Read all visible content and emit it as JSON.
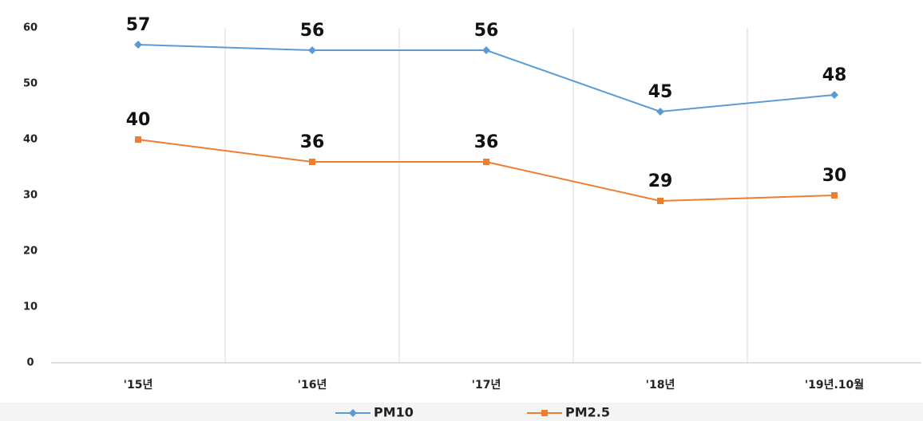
{
  "chart_data": {
    "type": "line",
    "categories": [
      "'15년",
      "'16년",
      "'17년",
      "'18년",
      "'19년.10월"
    ],
    "series": [
      {
        "name": "PM10",
        "color": "#5b9bd5",
        "marker": "diamond",
        "values": [
          57,
          56,
          56,
          45,
          48
        ]
      },
      {
        "name": "PM2.5",
        "color": "#ed7d31",
        "marker": "square",
        "values": [
          40,
          36,
          36,
          29,
          30
        ]
      }
    ],
    "ylim": [
      0,
      60
    ],
    "yticks": [
      0,
      10,
      20,
      30,
      40,
      50,
      60
    ],
    "legend": "bottom"
  }
}
